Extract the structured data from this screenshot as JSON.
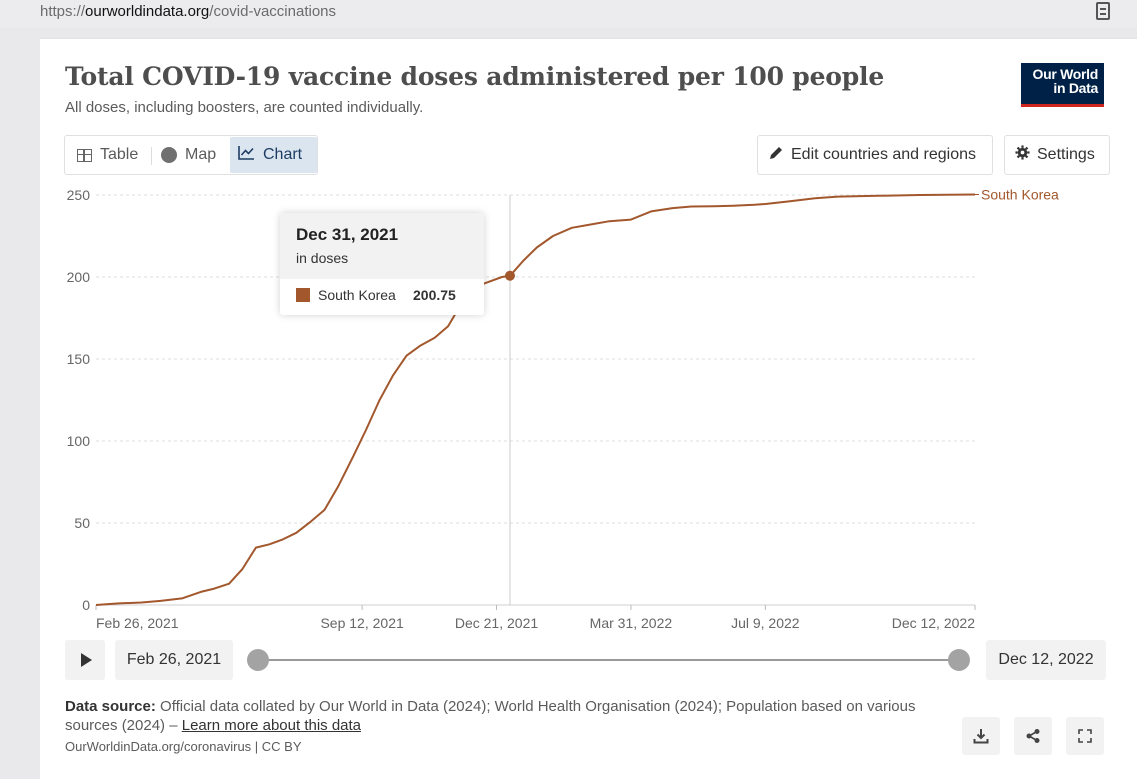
{
  "browser": {
    "url_host": "ourworldindata.org",
    "url_path": "/covid-vaccinations",
    "url_prefix": "https://"
  },
  "header": {
    "title": "Total COVID-19 vaccine doses administered per 100 people",
    "subtitle": "All doses, including boosters, are counted individually.",
    "logo_line1": "Our World",
    "logo_line2": "in Data"
  },
  "tabs": [
    {
      "label": "Table",
      "icon": "table-icon"
    },
    {
      "label": "Map",
      "icon": "globe-icon"
    },
    {
      "label": "Chart",
      "icon": "line-chart-icon",
      "active": true
    }
  ],
  "toolbar": {
    "edit_label": "Edit countries and regions",
    "settings_label": "Settings"
  },
  "chart_data": {
    "type": "line",
    "title": "Total COVID-19 vaccine doses administered per 100 people",
    "xlabel": "",
    "ylabel": "",
    "ylim": [
      0,
      250
    ],
    "yticks": [
      0,
      50,
      100,
      150,
      200,
      250
    ],
    "xticks": [
      "Feb 26, 2021",
      "Sep 12, 2021",
      "Dec 21, 2021",
      "Mar 31, 2022",
      "Jul 9, 2022",
      "Dec 12, 2022"
    ],
    "xlim": [
      "2021-02-26",
      "2022-12-12"
    ],
    "grid": "horizontal",
    "color": "#a2572c",
    "series": [
      {
        "name": "South Korea",
        "x": [
          "2021-02-26",
          "2021-03-15",
          "2021-04-01",
          "2021-04-15",
          "2021-05-01",
          "2021-05-15",
          "2021-05-25",
          "2021-06-05",
          "2021-06-15",
          "2021-06-25",
          "2021-07-05",
          "2021-07-15",
          "2021-07-25",
          "2021-08-05",
          "2021-08-15",
          "2021-08-25",
          "2021-09-05",
          "2021-09-15",
          "2021-09-25",
          "2021-10-05",
          "2021-10-15",
          "2021-10-25",
          "2021-11-05",
          "2021-11-15",
          "2021-11-25",
          "2021-12-05",
          "2021-12-15",
          "2021-12-25",
          "2021-12-31",
          "2022-01-10",
          "2022-01-20",
          "2022-02-01",
          "2022-02-15",
          "2022-03-01",
          "2022-03-15",
          "2022-03-31",
          "2022-04-15",
          "2022-05-01",
          "2022-05-15",
          "2022-06-01",
          "2022-06-15",
          "2022-07-01",
          "2022-07-09",
          "2022-07-25",
          "2022-08-15",
          "2022-09-01",
          "2022-10-01",
          "2022-11-01",
          "2022-12-12"
        ],
        "y": [
          0,
          1,
          1.5,
          2.5,
          4,
          8,
          10,
          13,
          22,
          35,
          37,
          40,
          44,
          51,
          58,
          72,
          90,
          107,
          125,
          140,
          152,
          158,
          163,
          170,
          184,
          194,
          197,
          200,
          200.75,
          210,
          218,
          225,
          230,
          232,
          234,
          235,
          240,
          242,
          243,
          243.2,
          243.5,
          244,
          244.5,
          246,
          248,
          249,
          249.5,
          250,
          250.3
        ]
      }
    ],
    "tooltip": {
      "date": "Dec 31, 2021",
      "unit": "in doses",
      "series": "South Korea",
      "value": "200.75"
    },
    "hover_x": "2021-12-31"
  },
  "timeline": {
    "start_label": "Feb 26, 2021",
    "end_label": "Dec 12, 2022"
  },
  "footer": {
    "source_label": "Data source:",
    "source_text": "Official data collated by Our World in Data (2024); World Health Organisation (2024); Population based on various sources (2024) –",
    "learn_more": "Learn more about this data",
    "license": "OurWorldinData.org/coronavirus | CC BY"
  }
}
